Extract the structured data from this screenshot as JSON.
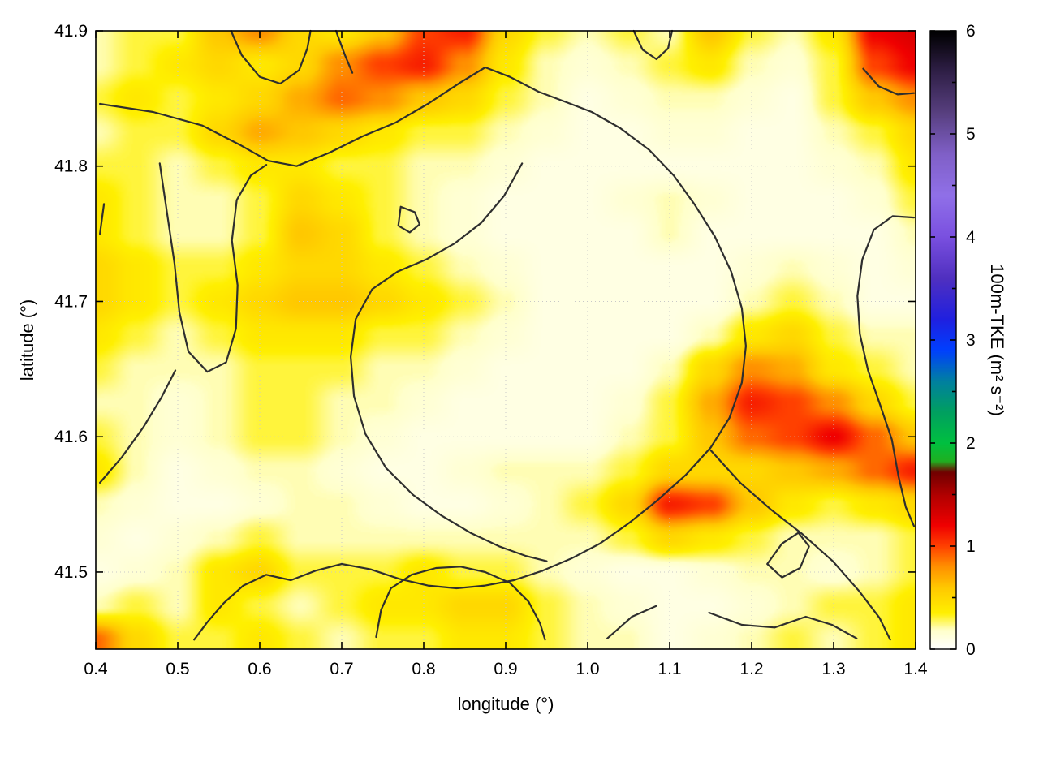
{
  "chart_data": {
    "type": "heatmap",
    "title": "",
    "xlabel": "longitude (°)",
    "ylabel": "latitude (°)",
    "colorbar_label": "100m-TKE (m² s⁻²)",
    "x_range": [
      0.4,
      1.4
    ],
    "y_range": [
      41.443,
      41.9
    ],
    "cb_range": [
      0,
      6
    ],
    "x_ticks": [
      "0.4",
      "0.5",
      "0.6",
      "0.7",
      "0.8",
      "0.9",
      "1.0",
      "1.1",
      "1.2",
      "1.3",
      "1.4"
    ],
    "y_ticks": [
      "41.5",
      "41.6",
      "41.7",
      "41.8",
      "41.9"
    ],
    "cb_ticks": [
      "0",
      "1",
      "2",
      "3",
      "4",
      "5",
      "6"
    ],
    "grid": true,
    "grid_color": "#c8c8c8",
    "contour_color": "#2e2e2e",
    "palette_stops": [
      [
        0.0,
        "#ffffff"
      ],
      [
        0.18,
        "#ffffcc"
      ],
      [
        0.35,
        "#fff000"
      ],
      [
        0.6,
        "#ffc800"
      ],
      [
        0.8,
        "#ff9000"
      ],
      [
        1.0,
        "#ff4000"
      ],
      [
        1.2,
        "#f00000"
      ],
      [
        1.5,
        "#b00000"
      ],
      [
        1.72,
        "#700000"
      ],
      [
        1.82,
        "#20b020"
      ],
      [
        2.0,
        "#00c040"
      ],
      [
        2.3,
        "#00a060"
      ],
      [
        2.6,
        "#0080a0"
      ],
      [
        2.9,
        "#0040ff"
      ],
      [
        3.2,
        "#2020e0"
      ],
      [
        3.6,
        "#5030c0"
      ],
      [
        4.0,
        "#7a50e0"
      ],
      [
        4.4,
        "#9070e8"
      ],
      [
        4.8,
        "#8060c8"
      ],
      [
        5.2,
        "#584080"
      ],
      [
        5.6,
        "#302048"
      ],
      [
        6.0,
        "#000000"
      ]
    ],
    "grid_x": [
      0.4,
      0.45,
      0.5,
      0.55,
      0.6,
      0.65,
      0.7,
      0.75,
      0.8,
      0.85,
      0.9,
      0.95,
      1.0,
      1.05,
      1.1,
      1.15,
      1.2,
      1.25,
      1.3,
      1.35,
      1.4
    ],
    "grid_y": [
      41.9,
      41.875,
      41.85,
      41.825,
      41.8,
      41.775,
      41.75,
      41.725,
      41.7,
      41.675,
      41.65,
      41.625,
      41.6,
      41.575,
      41.55,
      41.525,
      41.5,
      41.475,
      41.45
    ],
    "values": [
      [
        0.2,
        0.3,
        0.3,
        0.6,
        0.8,
        0.5,
        0.4,
        0.6,
        1.0,
        1.1,
        0.5,
        0.3,
        0.2,
        0.3,
        0.2,
        0.6,
        0.3,
        0.2,
        0.4,
        1.2,
        1.3
      ],
      [
        0.2,
        0.3,
        0.4,
        0.5,
        0.4,
        0.5,
        0.8,
        1.0,
        1.1,
        0.8,
        0.4,
        0.2,
        0.15,
        0.2,
        0.3,
        0.4,
        0.2,
        0.15,
        0.3,
        1.0,
        1.2
      ],
      [
        0.3,
        0.4,
        0.3,
        0.4,
        0.5,
        0.7,
        0.9,
        0.8,
        0.6,
        0.5,
        0.3,
        0.2,
        0.1,
        0.15,
        0.2,
        0.2,
        0.15,
        0.1,
        0.3,
        0.6,
        0.8
      ],
      [
        0.2,
        0.3,
        0.3,
        0.5,
        0.7,
        0.6,
        0.5,
        0.4,
        0.3,
        0.3,
        0.2,
        0.15,
        0.1,
        0.1,
        0.15,
        0.15,
        0.1,
        0.1,
        0.2,
        0.3,
        0.5
      ],
      [
        0.3,
        0.3,
        0.2,
        0.3,
        0.4,
        0.4,
        0.3,
        0.3,
        0.2,
        0.2,
        0.15,
        0.1,
        0.1,
        0.1,
        0.1,
        0.1,
        0.1,
        0.1,
        0.15,
        0.2,
        0.4
      ],
      [
        0.4,
        0.3,
        0.2,
        0.2,
        0.3,
        0.5,
        0.4,
        0.3,
        0.2,
        0.15,
        0.1,
        0.1,
        0.1,
        0.15,
        0.2,
        0.15,
        0.1,
        0.1,
        0.1,
        0.15,
        0.3
      ],
      [
        0.4,
        0.3,
        0.2,
        0.2,
        0.3,
        0.6,
        0.5,
        0.3,
        0.2,
        0.15,
        0.1,
        0.1,
        0.1,
        0.1,
        0.2,
        0.1,
        0.1,
        0.1,
        0.1,
        0.1,
        0.2
      ],
      [
        0.5,
        0.4,
        0.3,
        0.3,
        0.4,
        0.5,
        0.5,
        0.4,
        0.3,
        0.2,
        0.15,
        0.1,
        0.1,
        0.1,
        0.1,
        0.1,
        0.15,
        0.2,
        0.15,
        0.1,
        0.15
      ],
      [
        0.5,
        0.4,
        0.3,
        0.4,
        0.5,
        0.6,
        0.6,
        0.5,
        0.4,
        0.3,
        0.2,
        0.1,
        0.1,
        0.1,
        0.1,
        0.1,
        0.2,
        0.3,
        0.2,
        0.1,
        0.1
      ],
      [
        0.4,
        0.3,
        0.2,
        0.3,
        0.4,
        0.4,
        0.4,
        0.3,
        0.3,
        0.2,
        0.15,
        0.1,
        0.1,
        0.1,
        0.1,
        0.2,
        0.4,
        0.5,
        0.3,
        0.2,
        0.2
      ],
      [
        0.3,
        0.2,
        0.2,
        0.2,
        0.3,
        0.3,
        0.3,
        0.2,
        0.2,
        0.15,
        0.1,
        0.1,
        0.1,
        0.1,
        0.2,
        0.5,
        0.8,
        0.7,
        0.4,
        0.3,
        0.2
      ],
      [
        0.2,
        0.2,
        0.15,
        0.2,
        0.3,
        0.3,
        0.2,
        0.2,
        0.15,
        0.1,
        0.1,
        0.1,
        0.1,
        0.15,
        0.3,
        0.7,
        1.1,
        1.0,
        0.8,
        0.5,
        0.3
      ],
      [
        0.3,
        0.2,
        0.15,
        0.2,
        0.3,
        0.3,
        0.2,
        0.15,
        0.1,
        0.1,
        0.1,
        0.1,
        0.1,
        0.2,
        0.3,
        0.6,
        0.9,
        1.0,
        1.2,
        0.9,
        0.6
      ],
      [
        0.4,
        0.2,
        0.1,
        0.15,
        0.2,
        0.2,
        0.15,
        0.1,
        0.1,
        0.15,
        0.2,
        0.2,
        0.2,
        0.3,
        0.5,
        0.5,
        0.5,
        0.6,
        0.7,
        0.9,
        1.1
      ],
      [
        0.2,
        0.15,
        0.1,
        0.1,
        0.15,
        0.2,
        0.2,
        0.15,
        0.1,
        0.1,
        0.15,
        0.2,
        0.3,
        0.5,
        1.1,
        1.0,
        0.6,
        0.4,
        0.3,
        0.4,
        0.5
      ],
      [
        0.15,
        0.1,
        0.15,
        0.2,
        0.3,
        0.2,
        0.2,
        0.2,
        0.2,
        0.2,
        0.2,
        0.2,
        0.2,
        0.3,
        0.5,
        0.4,
        0.3,
        0.2,
        0.2,
        0.2,
        0.3
      ],
      [
        0.1,
        0.15,
        0.2,
        0.4,
        0.5,
        0.3,
        0.3,
        0.3,
        0.4,
        0.3,
        0.3,
        0.2,
        0.15,
        0.1,
        0.1,
        0.15,
        0.2,
        0.2,
        0.15,
        0.2,
        0.3
      ],
      [
        0.2,
        0.3,
        0.2,
        0.4,
        0.3,
        0.2,
        0.3,
        0.4,
        0.4,
        0.5,
        0.5,
        0.3,
        0.2,
        0.15,
        0.1,
        0.1,
        0.15,
        0.2,
        0.3,
        0.3,
        0.4
      ],
      [
        0.9,
        0.5,
        0.3,
        0.3,
        0.4,
        0.3,
        0.2,
        0.3,
        0.3,
        0.4,
        0.4,
        0.3,
        0.2,
        0.2,
        0.1,
        0.15,
        0.2,
        0.3,
        0.2,
        0.3,
        0.4
      ]
    ],
    "contours": [
      [
        [
          0.565,
          41.9
        ],
        [
          0.578,
          41.882
        ],
        [
          0.6,
          41.866
        ],
        [
          0.625,
          41.861
        ],
        [
          0.648,
          41.871
        ],
        [
          0.658,
          41.887
        ],
        [
          0.662,
          41.9
        ]
      ],
      [
        [
          0.693,
          41.9
        ],
        [
          0.704,
          41.882
        ],
        [
          0.713,
          41.869
        ]
      ],
      [
        [
          0.405,
          41.846
        ],
        [
          0.47,
          41.84
        ],
        [
          0.53,
          41.83
        ],
        [
          0.575,
          41.816
        ],
        [
          0.61,
          41.804
        ],
        [
          0.645,
          41.8
        ],
        [
          0.685,
          41.81
        ],
        [
          0.725,
          41.822
        ],
        [
          0.765,
          41.832
        ],
        [
          0.805,
          41.846
        ],
        [
          0.845,
          41.862
        ],
        [
          0.875,
          41.873
        ],
        [
          0.905,
          41.866
        ],
        [
          0.94,
          41.855
        ],
        [
          0.975,
          41.847
        ],
        [
          1.005,
          41.84
        ],
        [
          1.04,
          41.828
        ],
        [
          1.075,
          41.812
        ],
        [
          1.105,
          41.793
        ],
        [
          1.13,
          41.772
        ],
        [
          1.155,
          41.748
        ],
        [
          1.175,
          41.722
        ],
        [
          1.188,
          41.695
        ],
        [
          1.193,
          41.667
        ],
        [
          1.188,
          41.64
        ],
        [
          1.173,
          41.614
        ],
        [
          1.15,
          41.592
        ],
        [
          1.12,
          41.572
        ],
        [
          1.085,
          41.553
        ],
        [
          1.05,
          41.536
        ],
        [
          1.015,
          41.521
        ],
        [
          0.98,
          41.51
        ],
        [
          0.945,
          41.501
        ],
        [
          0.91,
          41.494
        ],
        [
          0.875,
          41.49
        ],
        [
          0.84,
          41.488
        ],
        [
          0.805,
          41.49
        ],
        [
          0.77,
          41.495
        ],
        [
          0.735,
          41.502
        ],
        [
          0.7,
          41.506
        ],
        [
          0.668,
          41.501
        ],
        [
          0.638,
          41.494
        ],
        [
          0.608,
          41.498
        ],
        [
          0.58,
          41.49
        ],
        [
          0.556,
          41.477
        ],
        [
          0.536,
          41.463
        ],
        [
          0.52,
          41.45
        ]
      ],
      [
        [
          0.478,
          41.802
        ],
        [
          0.487,
          41.765
        ],
        [
          0.496,
          41.728
        ],
        [
          0.502,
          41.692
        ],
        [
          0.513,
          41.663
        ],
        [
          0.536,
          41.648
        ],
        [
          0.559,
          41.655
        ],
        [
          0.571,
          41.68
        ],
        [
          0.573,
          41.712
        ],
        [
          0.566,
          41.745
        ],
        [
          0.572,
          41.775
        ],
        [
          0.589,
          41.793
        ],
        [
          0.608,
          41.801
        ]
      ],
      [
        [
          0.92,
          41.802
        ],
        [
          0.898,
          41.778
        ],
        [
          0.87,
          41.758
        ],
        [
          0.838,
          41.743
        ],
        [
          0.803,
          41.731
        ],
        [
          0.768,
          41.722
        ],
        [
          0.737,
          41.709
        ],
        [
          0.717,
          41.687
        ],
        [
          0.711,
          41.659
        ],
        [
          0.715,
          41.63
        ],
        [
          0.729,
          41.602
        ],
        [
          0.754,
          41.577
        ],
        [
          0.787,
          41.557
        ],
        [
          0.821,
          41.542
        ],
        [
          0.857,
          41.529
        ],
        [
          0.892,
          41.519
        ],
        [
          0.924,
          41.512
        ],
        [
          0.95,
          41.508
        ]
      ],
      [
        [
          0.772,
          41.77
        ],
        [
          0.789,
          41.766
        ],
        [
          0.795,
          41.757
        ],
        [
          0.783,
          41.751
        ],
        [
          0.769,
          41.756
        ],
        [
          0.772,
          41.77
        ]
      ],
      [
        [
          0.41,
          41.772
        ],
        [
          0.405,
          41.75
        ]
      ],
      [
        [
          0.405,
          41.566
        ],
        [
          0.432,
          41.585
        ],
        [
          0.458,
          41.607
        ],
        [
          0.48,
          41.629
        ],
        [
          0.497,
          41.649
        ]
      ],
      [
        [
          0.742,
          41.452
        ],
        [
          0.748,
          41.472
        ],
        [
          0.76,
          41.488
        ],
        [
          0.785,
          41.498
        ],
        [
          0.815,
          41.503
        ],
        [
          0.845,
          41.504
        ],
        [
          0.875,
          41.5
        ],
        [
          0.905,
          41.492
        ],
        [
          0.928,
          41.478
        ],
        [
          0.942,
          41.462
        ],
        [
          0.948,
          41.45
        ]
      ],
      [
        [
          1.398,
          41.762
        ],
        [
          1.372,
          41.763
        ],
        [
          1.349,
          41.753
        ],
        [
          1.335,
          41.731
        ],
        [
          1.329,
          41.704
        ],
        [
          1.332,
          41.676
        ],
        [
          1.342,
          41.649
        ],
        [
          1.357,
          41.623
        ],
        [
          1.371,
          41.598
        ],
        [
          1.379,
          41.571
        ],
        [
          1.388,
          41.548
        ],
        [
          1.398,
          41.534
        ]
      ],
      [
        [
          1.15,
          41.59
        ],
        [
          1.186,
          41.566
        ],
        [
          1.224,
          41.546
        ],
        [
          1.262,
          41.528
        ],
        [
          1.299,
          41.508
        ],
        [
          1.331,
          41.486
        ],
        [
          1.356,
          41.466
        ],
        [
          1.369,
          41.45
        ]
      ],
      [
        [
          1.219,
          41.506
        ],
        [
          1.237,
          41.521
        ],
        [
          1.257,
          41.529
        ],
        [
          1.27,
          41.519
        ],
        [
          1.259,
          41.503
        ],
        [
          1.237,
          41.496
        ],
        [
          1.219,
          41.506
        ]
      ],
      [
        [
          1.148,
          41.47
        ],
        [
          1.188,
          41.461
        ],
        [
          1.228,
          41.459
        ],
        [
          1.266,
          41.467
        ],
        [
          1.298,
          41.461
        ],
        [
          1.328,
          41.451
        ]
      ],
      [
        [
          1.024,
          41.451
        ],
        [
          1.054,
          41.467
        ],
        [
          1.084,
          41.475
        ]
      ],
      [
        [
          1.056,
          41.9
        ],
        [
          1.067,
          41.886
        ],
        [
          1.084,
          41.879
        ],
        [
          1.098,
          41.887
        ],
        [
          1.103,
          41.9
        ]
      ],
      [
        [
          1.336,
          41.872
        ],
        [
          1.355,
          41.859
        ],
        [
          1.378,
          41.853
        ],
        [
          1.398,
          41.854
        ]
      ]
    ]
  }
}
